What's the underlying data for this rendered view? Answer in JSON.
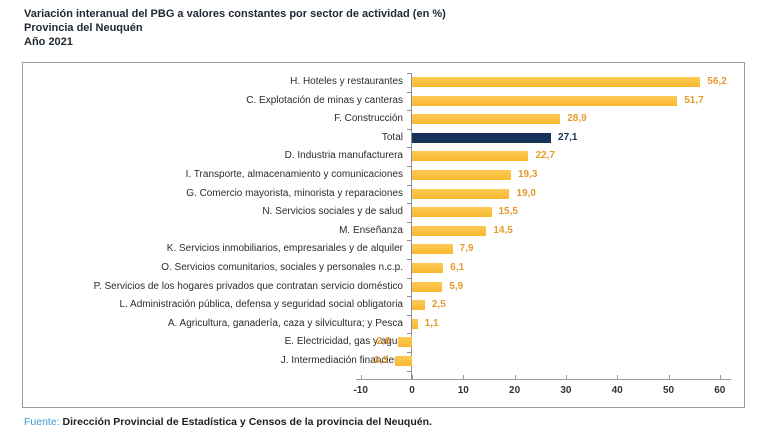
{
  "title": {
    "line1": "Variación interanual del PBG a valores constantes por sector de actividad (en %)",
    "line2": "Provincia del Neuquén",
    "line3": "Año 2021"
  },
  "chart_data": {
    "type": "bar",
    "orientation": "horizontal",
    "title": "Variación interanual del PBG a valores constantes por sector de actividad (en %)",
    "subtitle": "Provincia del Neuquén",
    "period": "Año 2021",
    "xlabel": "",
    "ylabel": "",
    "xlim": [
      -10,
      60
    ],
    "x_ticks": [
      "-10",
      "0",
      "10",
      "20",
      "30",
      "40",
      "50",
      "60"
    ],
    "x_tick_values": [
      -10,
      0,
      10,
      20,
      30,
      40,
      50,
      60
    ],
    "grid": false,
    "legend": "none",
    "categories": [
      "H. Hoteles y restaurantes",
      "C. Explotación de minas y canteras",
      "F. Construcción",
      "Total",
      "D. Industria manufacturera",
      "I. Transporte, almacenamiento y comunicaciones",
      "G. Comercio mayorista, minorista y reparaciones",
      "N. Servicios sociales y de salud",
      "M. Enseñanza",
      "K. Servicios inmobiliarios, empresariales y de alquiler",
      "O. Servicios comunitarios, sociales y personales n.c.p.",
      "P. Servicios de los hogares privados que contratan servicio doméstico",
      "L. Administración pública, defensa y seguridad social obligatoria",
      "A. Agricultura, ganadería, caza y silvicultura; y Pesca",
      "E. Electricidad, gas y agua",
      "J. Intermediación financiera"
    ],
    "values": [
      56.2,
      51.7,
      28.9,
      27.1,
      22.7,
      19.3,
      19.0,
      15.5,
      14.5,
      7.9,
      6.1,
      5.9,
      2.5,
      1.1,
      -2.8,
      -3.3
    ],
    "value_labels": [
      "56,2",
      "51,7",
      "28,9",
      "27,1",
      "22,7",
      "19,3",
      "19,0",
      "15,5",
      "14,5",
      "7,9",
      "6,1",
      "5,9",
      "2,5",
      "1,1",
      "-2,8",
      "-3,3"
    ],
    "highlight_category": "Total",
    "colors": {
      "bar": "#FBBD3C",
      "highlight_bar": "#16325A",
      "value_text": "#E49B2D",
      "highlight_value_text": "#16325A",
      "axis": "#9B9B9B",
      "category_text": "#2B2B2B"
    }
  },
  "footer": {
    "source_label": "Fuente:",
    "source_text": "Dirección Provincial de Estadística y Censos de la provincia del Neuquén."
  }
}
